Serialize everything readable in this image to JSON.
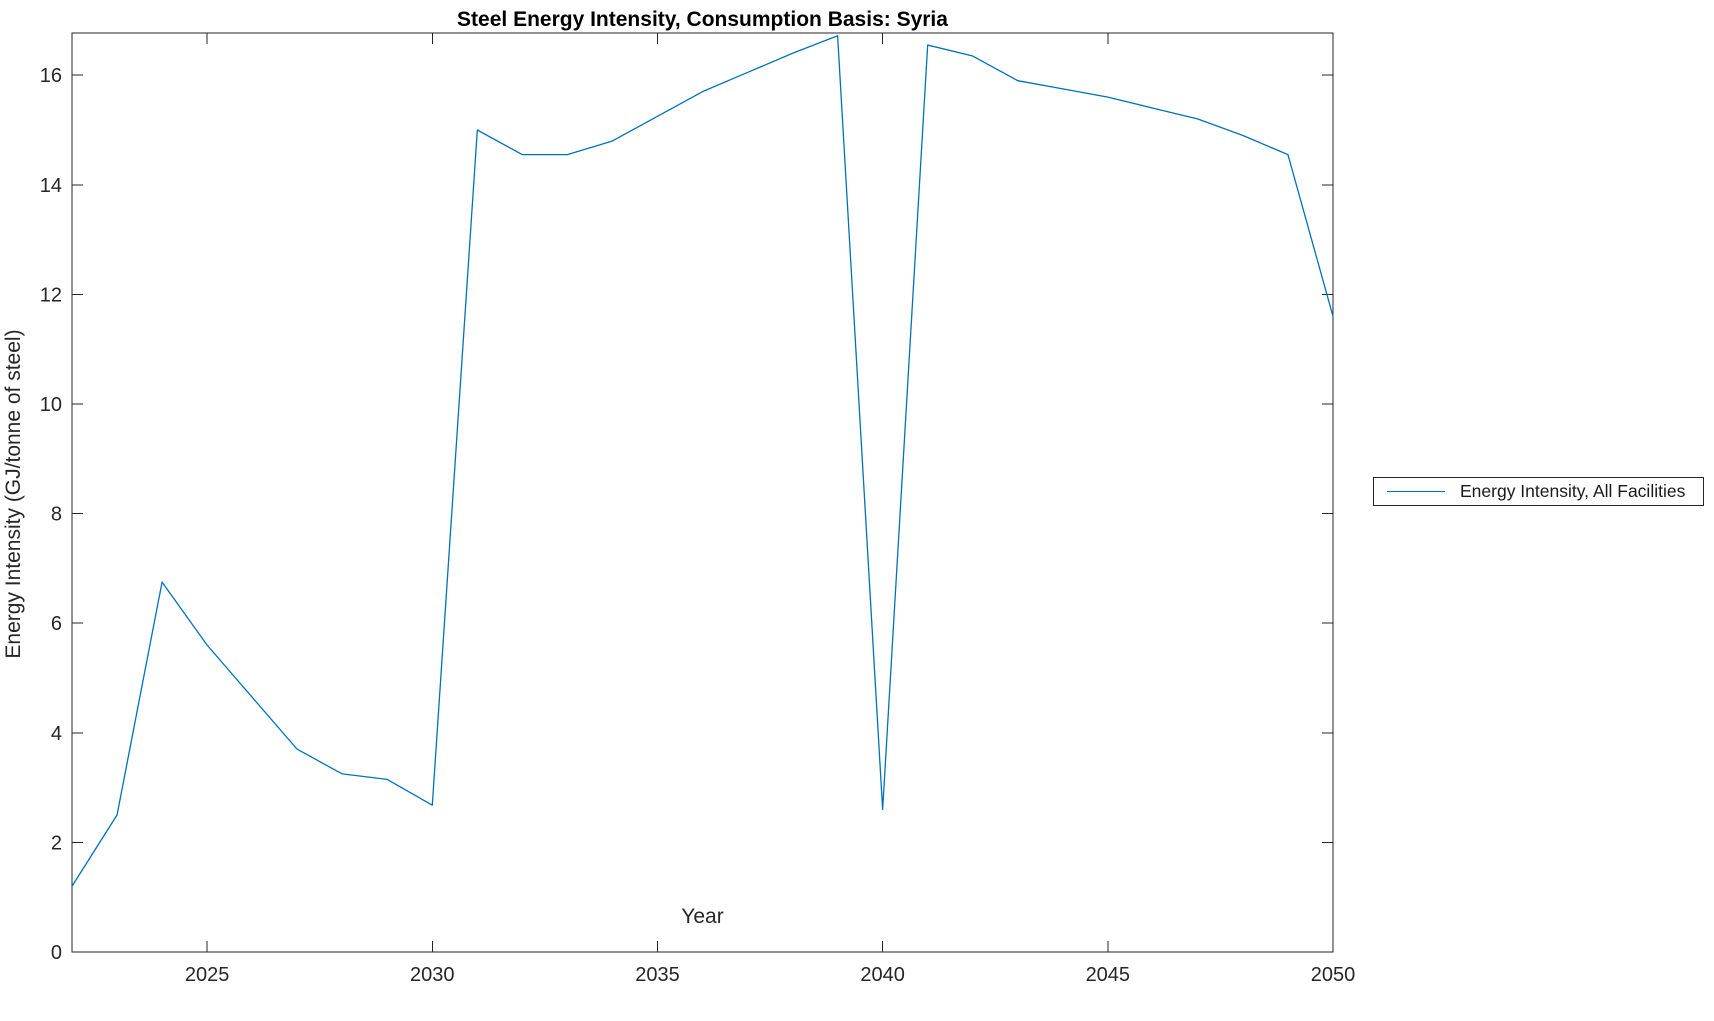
{
  "figure": {
    "title": "Steel Energy Intensity, Consumption Basis: Syria",
    "background": "#ffffff",
    "axis_color": "#262626"
  },
  "legend": {
    "entries": [
      {
        "label": "Energy Intensity, All Facilities",
        "color": "#0072BD"
      }
    ],
    "position": "outside-right-middle"
  },
  "chart_data": {
    "type": "line",
    "title": "Steel Energy Intensity, Consumption Basis: Syria",
    "xlabel": "Year",
    "ylabel": "Energy Intensity (GJ/tonne of steel)",
    "grid": false,
    "legend_position": "outside-right",
    "xlim": [
      2022,
      2050
    ],
    "ylim": [
      0,
      16.77
    ],
    "xticks": [
      2025,
      2030,
      2035,
      2040,
      2045,
      2050
    ],
    "yticks": [
      0,
      2,
      4,
      6,
      8,
      10,
      12,
      14,
      16
    ],
    "series": [
      {
        "name": "Energy Intensity, All Facilities",
        "color": "#0072BD",
        "x": [
          2022,
          2023,
          2024,
          2025,
          2026,
          2027,
          2028,
          2029,
          2030,
          2031,
          2032,
          2033,
          2034,
          2035,
          2036,
          2037,
          2038,
          2039,
          2040,
          2041,
          2042,
          2043,
          2044,
          2045,
          2046,
          2047,
          2048,
          2049,
          2050
        ],
        "y": [
          1.2,
          2.5,
          6.75,
          5.6,
          4.65,
          3.7,
          3.25,
          3.15,
          2.68,
          15.0,
          14.55,
          14.55,
          14.8,
          15.25,
          15.7,
          16.05,
          16.4,
          16.72,
          2.6,
          16.55,
          16.35,
          15.9,
          15.75,
          15.6,
          15.4,
          15.2,
          14.9,
          14.55,
          11.6
        ]
      }
    ]
  }
}
